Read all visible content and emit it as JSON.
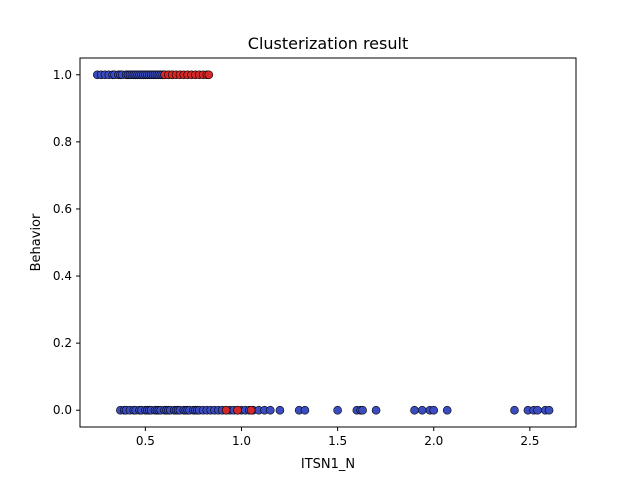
{
  "chart_data": {
    "type": "scatter",
    "title": "Clusterization result",
    "xlabel": "ITSN1_N",
    "ylabel": "Behavior",
    "xlim": [
      0.16,
      2.74
    ],
    "ylim": [
      -0.05,
      1.05
    ],
    "xticks": [
      0.5,
      1.0,
      1.5,
      2.0,
      2.5
    ],
    "xtick_labels": [
      "0.5",
      "1.0",
      "1.5",
      "2.0",
      "2.5"
    ],
    "yticks": [
      0.0,
      0.2,
      0.4,
      0.6,
      0.8,
      1.0
    ],
    "ytick_labels": [
      "0.0",
      "0.2",
      "0.4",
      "0.6",
      "0.8",
      "1.0"
    ],
    "grid": false,
    "legend": false,
    "series": [
      {
        "color": "#3b4cc0",
        "points": [
          [
            0.25,
            1
          ],
          [
            0.27,
            1
          ],
          [
            0.29,
            1
          ],
          [
            0.31,
            1
          ],
          [
            0.33,
            1
          ],
          [
            0.34,
            1
          ],
          [
            0.36,
            1
          ],
          [
            0.37,
            1
          ],
          [
            0.38,
            1
          ],
          [
            0.4,
            1
          ],
          [
            0.41,
            1
          ],
          [
            0.42,
            1
          ],
          [
            0.43,
            1
          ],
          [
            0.44,
            1
          ],
          [
            0.45,
            1
          ],
          [
            0.46,
            1
          ],
          [
            0.47,
            1
          ],
          [
            0.48,
            1
          ],
          [
            0.49,
            1
          ],
          [
            0.5,
            1
          ],
          [
            0.51,
            1
          ],
          [
            0.52,
            1
          ],
          [
            0.53,
            1
          ],
          [
            0.54,
            1
          ],
          [
            0.55,
            1
          ],
          [
            0.56,
            1
          ],
          [
            0.57,
            1
          ],
          [
            0.58,
            1
          ],
          [
            0.59,
            1
          ],
          [
            0.6,
            1
          ],
          [
            0.62,
            1
          ],
          [
            0.64,
            1
          ],
          [
            0.37,
            0
          ],
          [
            0.39,
            0
          ],
          [
            0.4,
            0
          ],
          [
            0.42,
            0
          ],
          [
            0.44,
            0
          ],
          [
            0.45,
            0
          ],
          [
            0.47,
            0
          ],
          [
            0.48,
            0
          ],
          [
            0.5,
            0
          ],
          [
            0.51,
            0
          ],
          [
            0.52,
            0
          ],
          [
            0.53,
            0
          ],
          [
            0.55,
            0
          ],
          [
            0.56,
            0
          ],
          [
            0.57,
            0
          ],
          [
            0.58,
            0
          ],
          [
            0.6,
            0
          ],
          [
            0.61,
            0
          ],
          [
            0.62,
            0
          ],
          [
            0.63,
            0
          ],
          [
            0.65,
            0
          ],
          [
            0.66,
            0
          ],
          [
            0.67,
            0
          ],
          [
            0.68,
            0
          ],
          [
            0.7,
            0
          ],
          [
            0.71,
            0
          ],
          [
            0.72,
            0
          ],
          [
            0.73,
            0
          ],
          [
            0.75,
            0
          ],
          [
            0.76,
            0
          ],
          [
            0.77,
            0
          ],
          [
            0.78,
            0
          ],
          [
            0.8,
            0
          ],
          [
            0.82,
            0
          ],
          [
            0.84,
            0
          ],
          [
            0.86,
            0
          ],
          [
            0.88,
            0
          ],
          [
            0.9,
            0
          ],
          [
            0.92,
            0
          ],
          [
            0.94,
            0
          ],
          [
            0.96,
            0
          ],
          [
            0.98,
            0
          ],
          [
            1.0,
            0
          ],
          [
            1.02,
            0
          ],
          [
            1.04,
            0
          ],
          [
            1.06,
            0
          ],
          [
            1.09,
            0
          ],
          [
            1.12,
            0
          ],
          [
            1.15,
            0
          ],
          [
            1.2,
            0
          ],
          [
            1.3,
            0
          ],
          [
            1.33,
            0
          ],
          [
            1.5,
            0
          ],
          [
            1.6,
            0
          ],
          [
            1.62,
            0
          ],
          [
            1.63,
            0
          ],
          [
            1.7,
            0
          ],
          [
            1.9,
            0
          ],
          [
            1.94,
            0
          ],
          [
            1.98,
            0
          ],
          [
            2.0,
            0
          ],
          [
            2.07,
            0
          ],
          [
            2.42,
            0
          ],
          [
            2.49,
            0
          ],
          [
            2.52,
            0
          ],
          [
            2.54,
            0
          ],
          [
            2.58,
            0
          ],
          [
            2.6,
            0
          ]
        ]
      },
      {
        "color": "#d62728",
        "points": [
          [
            0.6,
            1
          ],
          [
            0.62,
            1
          ],
          [
            0.64,
            1
          ],
          [
            0.66,
            1
          ],
          [
            0.68,
            1
          ],
          [
            0.7,
            1
          ],
          [
            0.72,
            1
          ],
          [
            0.74,
            1
          ],
          [
            0.76,
            1
          ],
          [
            0.78,
            1
          ],
          [
            0.8,
            1
          ],
          [
            0.82,
            1
          ],
          [
            0.83,
            1
          ],
          [
            0.92,
            0
          ],
          [
            0.98,
            0
          ],
          [
            1.05,
            0
          ]
        ]
      }
    ]
  }
}
